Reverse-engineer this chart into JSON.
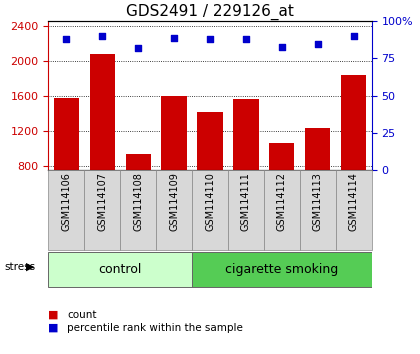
{
  "title": "GDS2491 / 229126_at",
  "samples": [
    "GSM114106",
    "GSM114107",
    "GSM114108",
    "GSM114109",
    "GSM114110",
    "GSM114111",
    "GSM114112",
    "GSM114113",
    "GSM114114"
  ],
  "counts": [
    1570,
    2075,
    930,
    1600,
    1410,
    1560,
    1060,
    1230,
    1840
  ],
  "percentiles": [
    88,
    90,
    82,
    89,
    88,
    88,
    83,
    85,
    90
  ],
  "bar_color": "#cc0000",
  "dot_color": "#0000cc",
  "ylim_left": [
    750,
    2450
  ],
  "ylim_right": [
    0,
    100
  ],
  "yticks_left": [
    800,
    1200,
    1600,
    2000,
    2400
  ],
  "yticks_right": [
    0,
    25,
    50,
    75,
    100
  ],
  "control_indices": [
    0,
    1,
    2,
    3
  ],
  "smoking_indices": [
    4,
    5,
    6,
    7,
    8
  ],
  "control_color": "#ccffcc",
  "smoking_color": "#55cc55",
  "group_label": "stress",
  "control_label": "control",
  "smoking_label": "cigarette smoking",
  "legend_count": "count",
  "legend_percentile": "percentile rank within the sample",
  "sample_bg_color": "#d8d8d8",
  "title_fontsize": 11,
  "tick_fontsize": 8,
  "sample_fontsize": 7,
  "group_fontsize": 9
}
